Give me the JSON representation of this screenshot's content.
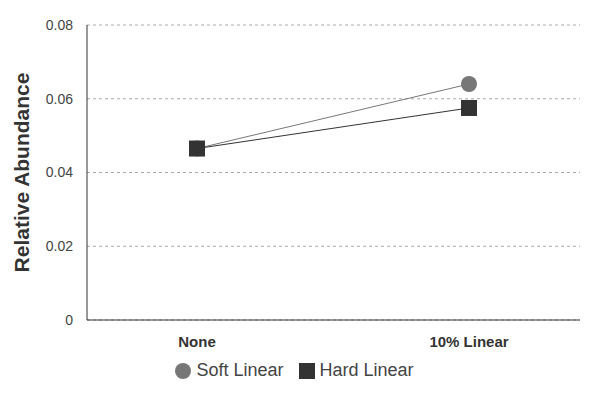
{
  "chart_data": {
    "type": "line",
    "y_label": "Relative Abundance",
    "categories": [
      "None",
      "10% Linear"
    ],
    "series": [
      {
        "name": "Soft Linear",
        "color": "#777777",
        "marker": "circle",
        "values": [
          0.0465,
          0.064
        ]
      },
      {
        "name": "Hard Linear",
        "color": "#333333",
        "marker": "square",
        "values": [
          0.0465,
          0.0575
        ]
      }
    ],
    "ylim": [
      0,
      0.08
    ],
    "yticks": [
      0,
      0.02,
      0.04,
      0.06,
      0.08
    ],
    "grid": true,
    "legend": "bottom"
  }
}
